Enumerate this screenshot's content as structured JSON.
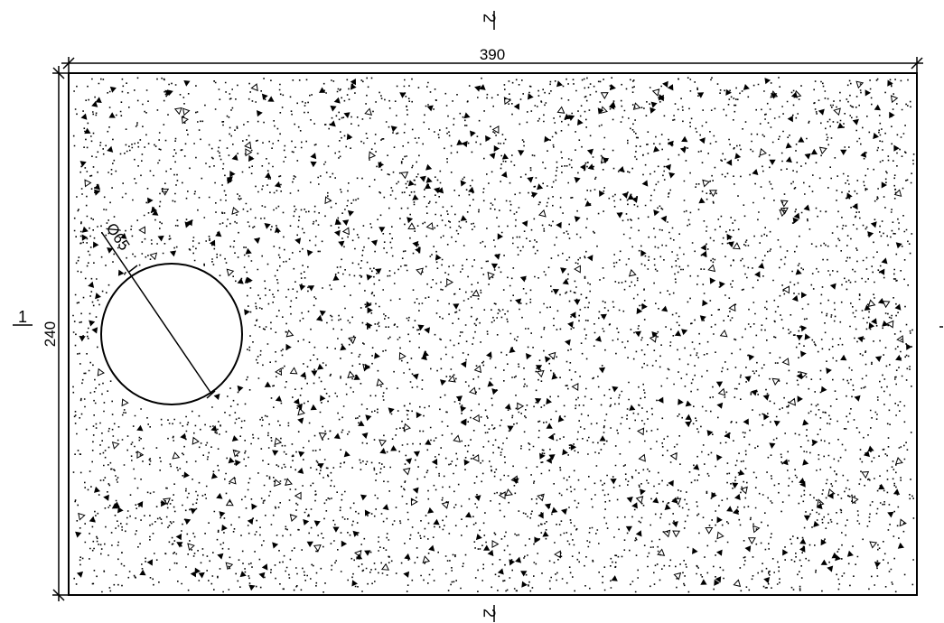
{
  "drawing": {
    "width_dim": "390",
    "height_dim": "240",
    "hole_dim": "Ø65",
    "section_top": "2",
    "section_bottom": "2",
    "section_left": "1",
    "hatch": "concrete",
    "colors": {
      "line": "#000000",
      "background": "#ffffff"
    }
  }
}
